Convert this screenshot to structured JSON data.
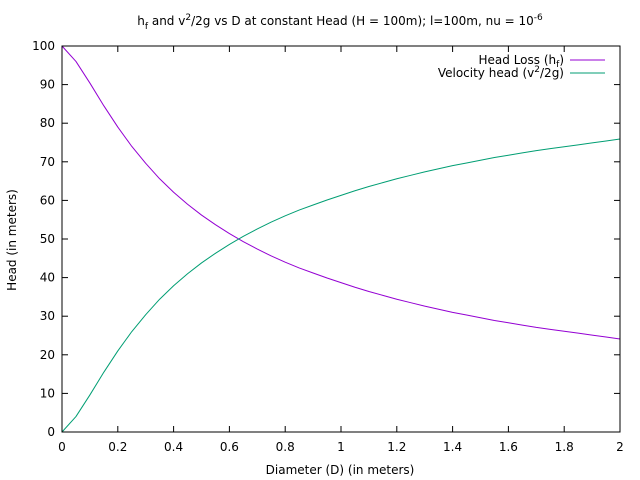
{
  "chart_data": {
    "type": "line",
    "title": {
      "p1": "h",
      "p1_sub": "f",
      "p2": " and v",
      "p2_sup": "2",
      "p3": "/2g vs D at constant Head (H = 100m); l=100m, nu = 10",
      "p3_sup": "-6"
    },
    "xlabel": "Diameter (D) (in meters)",
    "ylabel": "Head (in meters)",
    "xlim": [
      0,
      2
    ],
    "ylim": [
      0,
      100
    ],
    "xticks": [
      0,
      0.2,
      0.4,
      0.6,
      0.8,
      1,
      1.2,
      1.4,
      1.6,
      1.8,
      2
    ],
    "xtick_labels": [
      "0",
      "0.2",
      "0.4",
      "0.6",
      "0.8",
      "1",
      "1.2",
      "1.4",
      "1.6",
      "1.8",
      "2"
    ],
    "yticks": [
      0,
      10,
      20,
      30,
      40,
      50,
      60,
      70,
      80,
      90,
      100
    ],
    "ytick_labels": [
      "0",
      "10",
      "20",
      "30",
      "40",
      "50",
      "60",
      "70",
      "80",
      "90",
      "100"
    ],
    "grid": false,
    "legend_position": "top-right",
    "x": [
      0,
      0.05,
      0.1,
      0.15,
      0.2,
      0.25,
      0.3,
      0.35,
      0.4,
      0.45,
      0.5,
      0.55,
      0.6,
      0.65,
      0.7,
      0.75,
      0.8,
      0.85,
      0.9,
      0.95,
      1.0,
      1.05,
      1.1,
      1.15,
      1.2,
      1.25,
      1.3,
      1.35,
      1.4,
      1.45,
      1.5,
      1.55,
      1.6,
      1.65,
      1.7,
      1.75,
      1.8,
      1.85,
      1.9,
      1.95,
      2.0
    ],
    "series": [
      {
        "name": "Head Loss (hf)",
        "legend": {
          "main": "Head Loss (h",
          "sub": "f",
          "end": ")"
        },
        "color": "#9400d3",
        "values": [
          100,
          96.0,
          90.4,
          84.5,
          79.0,
          74.0,
          69.6,
          65.6,
          62.1,
          59.0,
          56.2,
          53.7,
          51.4,
          49.3,
          47.4,
          45.6,
          44.0,
          42.5,
          41.2,
          39.9,
          38.7,
          37.5,
          36.4,
          35.4,
          34.4,
          33.5,
          32.6,
          31.8,
          31.0,
          30.3,
          29.6,
          28.9,
          28.3,
          27.7,
          27.1,
          26.6,
          26.1,
          25.6,
          25.1,
          24.6,
          24.1
        ]
      },
      {
        "name": "Velocity head (v2/2g)",
        "legend": {
          "main": "Velocity head (v",
          "sup": "2",
          "end": "/2g)"
        },
        "color": "#009e73",
        "values": [
          0,
          4.0,
          9.6,
          15.5,
          21.0,
          26.0,
          30.4,
          34.4,
          37.9,
          41.0,
          43.8,
          46.3,
          48.6,
          50.7,
          52.6,
          54.4,
          56.0,
          57.5,
          58.8,
          60.1,
          61.3,
          62.5,
          63.6,
          64.6,
          65.6,
          66.5,
          67.4,
          68.2,
          69.0,
          69.7,
          70.4,
          71.1,
          71.7,
          72.3,
          72.9,
          73.4,
          73.9,
          74.4,
          74.9,
          75.4,
          75.9
        ]
      }
    ]
  }
}
